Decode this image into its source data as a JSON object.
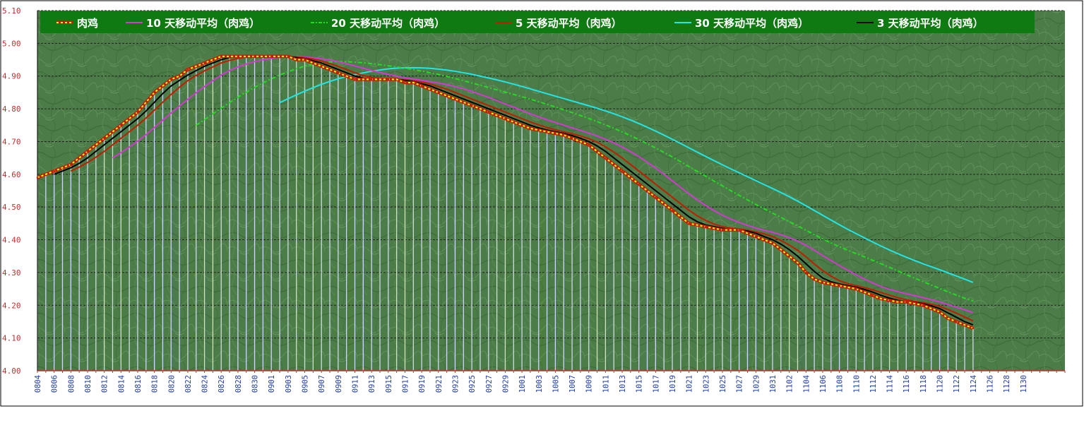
{
  "chart_data": {
    "type": "line",
    "title": "",
    "xlabel": "",
    "ylabel": "",
    "ylim": [
      4.0,
      5.1
    ],
    "yticks": [
      "4.00",
      "4.10",
      "4.20",
      "4.30",
      "4.40",
      "4.50",
      "4.60",
      "4.70",
      "4.80",
      "4.90",
      "5.00",
      "5.10"
    ],
    "grid": true,
    "legend_position": "top",
    "x_tick_labels": [
      "0804",
      "0806",
      "0808",
      "0810",
      "0812",
      "0814",
      "0816",
      "0818",
      "0820",
      "0822",
      "0824",
      "0826",
      "0828",
      "0830",
      "0901",
      "0903",
      "0905",
      "0907",
      "0909",
      "0911",
      "0913",
      "0915",
      "0917",
      "0919",
      "0921",
      "0923",
      "0925",
      "0927",
      "0929",
      "1001",
      "1003",
      "1005",
      "1007",
      "1009",
      "1011",
      "1013",
      "1015",
      "1017",
      "1019",
      "1021",
      "1023",
      "1025",
      "1027",
      "1029",
      "1031",
      "1102",
      "1104",
      "1106",
      "1108",
      "1110",
      "1112",
      "1114",
      "1116",
      "1118",
      "1120",
      "1122",
      "1124",
      "1126",
      "1128",
      "1130"
    ],
    "x_count": 124,
    "base_series": {
      "name": "肉鸡",
      "color": "#ffff00",
      "start_index": 0,
      "values": [
        4.59,
        4.6,
        4.61,
        4.62,
        4.63,
        4.65,
        4.67,
        4.69,
        4.71,
        4.73,
        4.75,
        4.77,
        4.79,
        4.82,
        4.85,
        4.87,
        4.89,
        4.9,
        4.92,
        4.93,
        4.94,
        4.95,
        4.96,
        4.96,
        4.96,
        4.96,
        4.96,
        4.96,
        4.96,
        4.96,
        4.96,
        4.95,
        4.95,
        4.94,
        4.93,
        4.92,
        4.91,
        4.9,
        4.89,
        4.89,
        4.89,
        4.89,
        4.89,
        4.89,
        4.88,
        4.88,
        4.87,
        4.86,
        4.85,
        4.84,
        4.83,
        4.82,
        4.81,
        4.8,
        4.79,
        4.78,
        4.77,
        4.76,
        4.75,
        4.74,
        4.735,
        4.73,
        4.725,
        4.72,
        4.71,
        4.7,
        4.69,
        4.67,
        4.65,
        4.63,
        4.61,
        4.59,
        4.57,
        4.55,
        4.53,
        4.51,
        4.49,
        4.47,
        4.45,
        4.445,
        4.44,
        4.435,
        4.43,
        4.43,
        4.43,
        4.42,
        4.41,
        4.4,
        4.39,
        4.37,
        4.35,
        4.33,
        4.3,
        4.28,
        4.27,
        4.265,
        4.26,
        4.255,
        4.25,
        4.24,
        4.23,
        4.22,
        4.215,
        4.21,
        4.21,
        4.205,
        4.2,
        4.19,
        4.18,
        4.16,
        4.15,
        4.14,
        4.13
      ]
    },
    "series": [
      {
        "name": "10 天移动平均（肉鸡）",
        "color": "#d23ad2",
        "window": 10
      },
      {
        "name": "20 天移动平均（肉鸡）",
        "color": "#22dd22",
        "window": 20
      },
      {
        "name": "5 天移动平均（肉鸡）",
        "color": "#c01e00",
        "window": 5
      },
      {
        "name": "30 天移动平均（肉鸡）",
        "color": "#22e6e6",
        "window": 30
      },
      {
        "name": "3 天移动平均（肉鸡）",
        "color": "#000000",
        "window": 3
      }
    ],
    "legend_order": [
      "肉鸡",
      "10 天移动平均（肉鸡）",
      "20 天移动平均（肉鸡）",
      "5 天移动平均（肉鸡）",
      "30 天移动平均（肉鸡）",
      "3 天移动平均（肉鸡）"
    ],
    "colors": {
      "plot_background": "#4a7a45",
      "legend_background": "#0f7a12",
      "grid_line": "#222222",
      "drop_line": "#cfd8f0",
      "axis_line": "#c03030",
      "base_marker": "#c01e00"
    }
  }
}
